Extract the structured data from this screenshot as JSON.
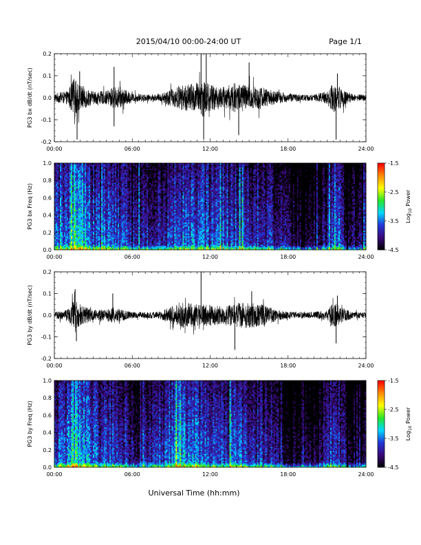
{
  "header": {
    "date_range": "2015/04/10  00:00-24:00 UT",
    "page": "Page 1/1"
  },
  "xlabel": "Universal Time (hh:mm)",
  "x_ticks": [
    "00:00",
    "06:00",
    "12:00",
    "18:00",
    "24:00"
  ],
  "colors": {
    "trace": "#000000",
    "colormap": [
      "#000000",
      "#3a0a78",
      "#2436d6",
      "#00d8ff",
      "#28e628",
      "#ffff00",
      "#ff8c00",
      "#ff0000"
    ]
  },
  "chart_data": [
    {
      "type": "line",
      "ylabel": "PG3 bx dB/dt (nT/sec)",
      "x_range_hours": [
        0,
        24
      ],
      "ylim": [
        -0.2,
        0.2
      ],
      "y_ticks": [
        "0.2",
        "0.1",
        "0.0",
        "-0.1",
        "-0.2"
      ],
      "y_tick_values": [
        0.2,
        0.1,
        0.0,
        -0.1,
        -0.2
      ],
      "activity_envelope": [
        {
          "x": 0.0,
          "y": 0.02
        },
        {
          "x": 0.5,
          "y": 0.025
        },
        {
          "x": 1.0,
          "y": 0.03
        },
        {
          "x": 1.5,
          "y": 0.09
        },
        {
          "x": 2.0,
          "y": 0.06
        },
        {
          "x": 3.0,
          "y": 0.03
        },
        {
          "x": 4.0,
          "y": 0.03
        },
        {
          "x": 4.5,
          "y": 0.05
        },
        {
          "x": 5.0,
          "y": 0.05
        },
        {
          "x": 6.0,
          "y": 0.02
        },
        {
          "x": 7.0,
          "y": 0.015
        },
        {
          "x": 8.0,
          "y": 0.015
        },
        {
          "x": 9.0,
          "y": 0.04
        },
        {
          "x": 10.0,
          "y": 0.06
        },
        {
          "x": 11.0,
          "y": 0.07
        },
        {
          "x": 11.5,
          "y": 0.09
        },
        {
          "x": 12.0,
          "y": 0.06
        },
        {
          "x": 13.0,
          "y": 0.05
        },
        {
          "x": 14.0,
          "y": 0.07
        },
        {
          "x": 15.0,
          "y": 0.06
        },
        {
          "x": 16.0,
          "y": 0.05
        },
        {
          "x": 17.0,
          "y": 0.03
        },
        {
          "x": 18.0,
          "y": 0.02
        },
        {
          "x": 19.0,
          "y": 0.015
        },
        {
          "x": 20.0,
          "y": 0.015
        },
        {
          "x": 21.0,
          "y": 0.03
        },
        {
          "x": 21.5,
          "y": 0.07
        },
        {
          "x": 22.0,
          "y": 0.05
        },
        {
          "x": 23.0,
          "y": 0.015
        },
        {
          "x": 24.0,
          "y": 0.015
        }
      ],
      "spikes": [
        {
          "x": 1.75,
          "y": -0.19
        },
        {
          "x": 1.95,
          "y": 0.12
        },
        {
          "x": 4.6,
          "y": -0.13
        },
        {
          "x": 4.6,
          "y": 0.14
        },
        {
          "x": 11.3,
          "y": 0.21
        },
        {
          "x": 11.5,
          "y": -0.19
        },
        {
          "x": 11.7,
          "y": 0.2
        },
        {
          "x": 14.2,
          "y": -0.17
        },
        {
          "x": 15.0,
          "y": 0.16
        },
        {
          "x": 21.7,
          "y": -0.19
        },
        {
          "x": 21.8,
          "y": 0.11
        }
      ]
    },
    {
      "type": "heatmap",
      "ylabel": "PG3 bx Freq (Hz)",
      "x_range_hours": [
        0,
        24
      ],
      "ylim": [
        0,
        1.0
      ],
      "y_ticks": [
        "1.0",
        "0.8",
        "0.6",
        "0.4",
        "0.2",
        "0.0"
      ],
      "y_tick_values": [
        1.0,
        0.8,
        0.6,
        0.4,
        0.2,
        0.0
      ],
      "colorbar": {
        "label": "Log",
        "label_sub": "10",
        "label_tail": " Power",
        "ticks": [
          "-1.5",
          "-2.5",
          "-3.5",
          "-4.5"
        ],
        "tick_values": [
          -1.5,
          -2.5,
          -3.5,
          -4.5
        ],
        "range": [
          -4.5,
          -1.5
        ]
      },
      "time_profile": [
        {
          "x": 0,
          "v": -3.6
        },
        {
          "x": 1,
          "v": -3.4
        },
        {
          "x": 1.6,
          "v": -2.9
        },
        {
          "x": 2.2,
          "v": -3.2
        },
        {
          "x": 3,
          "v": -3.6
        },
        {
          "x": 4,
          "v": -3.6
        },
        {
          "x": 5,
          "v": -3.6
        },
        {
          "x": 6,
          "v": -3.9
        },
        {
          "x": 8,
          "v": -3.9
        },
        {
          "x": 9.5,
          "v": -3.5
        },
        {
          "x": 11,
          "v": -3.5
        },
        {
          "x": 12,
          "v": -3.6
        },
        {
          "x": 14,
          "v": -3.6
        },
        {
          "x": 16,
          "v": -3.8
        },
        {
          "x": 17.5,
          "v": -4.0
        },
        {
          "x": 18,
          "v": -4.2
        },
        {
          "x": 20,
          "v": -4.3
        },
        {
          "x": 21,
          "v": -3.9
        },
        {
          "x": 21.6,
          "v": -3.3
        },
        {
          "x": 22.5,
          "v": -4.1
        },
        {
          "x": 24,
          "v": -4.2
        }
      ],
      "dark_stripe_hour": 22.6
    },
    {
      "type": "line",
      "ylabel": "PG3 by dB/dt (nT/sec)",
      "x_range_hours": [
        0,
        24
      ],
      "ylim": [
        -0.2,
        0.2
      ],
      "y_ticks": [
        "0.2",
        "0.1",
        "0.0",
        "-0.1",
        "-0.2"
      ],
      "y_tick_values": [
        0.2,
        0.1,
        0.0,
        -0.1,
        -0.2
      ],
      "activity_envelope": [
        {
          "x": 0.0,
          "y": 0.015
        },
        {
          "x": 1.0,
          "y": 0.025
        },
        {
          "x": 1.5,
          "y": 0.07
        },
        {
          "x": 2.0,
          "y": 0.05
        },
        {
          "x": 3.0,
          "y": 0.025
        },
        {
          "x": 4.0,
          "y": 0.025
        },
        {
          "x": 4.5,
          "y": 0.04
        },
        {
          "x": 5.0,
          "y": 0.03
        },
        {
          "x": 6.0,
          "y": 0.015
        },
        {
          "x": 8.0,
          "y": 0.015
        },
        {
          "x": 9.0,
          "y": 0.04
        },
        {
          "x": 10.0,
          "y": 0.06
        },
        {
          "x": 11.0,
          "y": 0.05
        },
        {
          "x": 12.0,
          "y": 0.05
        },
        {
          "x": 13.0,
          "y": 0.04
        },
        {
          "x": 14.0,
          "y": 0.06
        },
        {
          "x": 15.0,
          "y": 0.06
        },
        {
          "x": 16.0,
          "y": 0.05
        },
        {
          "x": 17.0,
          "y": 0.03
        },
        {
          "x": 18.0,
          "y": 0.015
        },
        {
          "x": 20.0,
          "y": 0.015
        },
        {
          "x": 21.0,
          "y": 0.025
        },
        {
          "x": 21.5,
          "y": 0.06
        },
        {
          "x": 22.0,
          "y": 0.04
        },
        {
          "x": 23.0,
          "y": 0.015
        },
        {
          "x": 24.0,
          "y": 0.015
        }
      ],
      "spikes": [
        {
          "x": 1.6,
          "y": 0.12
        },
        {
          "x": 1.7,
          "y": -0.12
        },
        {
          "x": 4.5,
          "y": 0.1
        },
        {
          "x": 11.3,
          "y": 0.21
        },
        {
          "x": 13.9,
          "y": -0.16
        },
        {
          "x": 15.2,
          "y": 0.11
        },
        {
          "x": 21.7,
          "y": -0.13
        },
        {
          "x": 21.8,
          "y": 0.09
        }
      ]
    },
    {
      "type": "heatmap",
      "ylabel": "PG3 by Freq (Hz)",
      "x_range_hours": [
        0,
        24
      ],
      "ylim": [
        0,
        1.0
      ],
      "y_ticks": [
        "1.0",
        "0.8",
        "0.6",
        "0.4",
        "0.2",
        "0.0"
      ],
      "y_tick_values": [
        1.0,
        0.8,
        0.6,
        0.4,
        0.2,
        0.0
      ],
      "colorbar": {
        "label": "Log",
        "label_sub": "10",
        "label_tail": " Power",
        "ticks": [
          "-1.5",
          "-2.5",
          "-3.5",
          "-4.5"
        ],
        "tick_values": [
          -1.5,
          -2.5,
          -3.5,
          -4.5
        ],
        "range": [
          -4.5,
          -1.5
        ]
      },
      "time_profile": [
        {
          "x": 0,
          "v": -3.7
        },
        {
          "x": 1,
          "v": -3.5
        },
        {
          "x": 1.6,
          "v": -3.0
        },
        {
          "x": 2.2,
          "v": -3.3
        },
        {
          "x": 3,
          "v": -3.6
        },
        {
          "x": 5,
          "v": -3.7
        },
        {
          "x": 6,
          "v": -4.0
        },
        {
          "x": 8,
          "v": -3.9
        },
        {
          "x": 9.5,
          "v": -3.2
        },
        {
          "x": 11,
          "v": -3.5
        },
        {
          "x": 12,
          "v": -3.6
        },
        {
          "x": 14,
          "v": -3.6
        },
        {
          "x": 16,
          "v": -3.8
        },
        {
          "x": 17.5,
          "v": -4.0
        },
        {
          "x": 18,
          "v": -4.3
        },
        {
          "x": 20,
          "v": -4.3
        },
        {
          "x": 21,
          "v": -3.9
        },
        {
          "x": 21.6,
          "v": -3.4
        },
        {
          "x": 22.5,
          "v": -4.2
        },
        {
          "x": 24,
          "v": -4.2
        }
      ],
      "dark_stripe_hour": 22.6
    }
  ]
}
